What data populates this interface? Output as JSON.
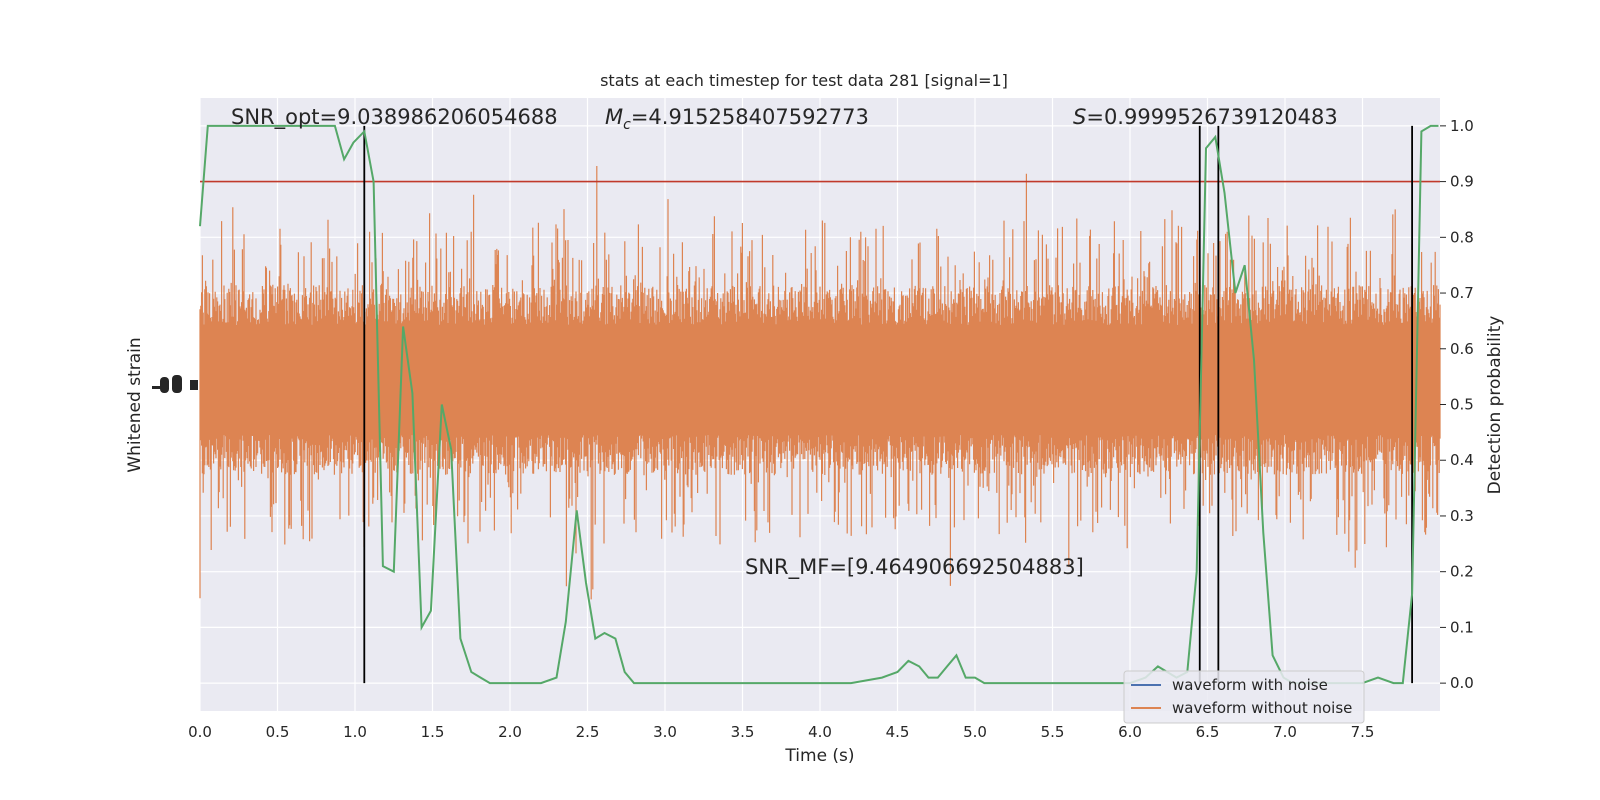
{
  "chart_data": {
    "type": "line",
    "title": "stats at each timestep for test data 281 [signal=1]",
    "xlabel": "Time (s)",
    "ylabel_left": "Whitened strain",
    "ylabel_right": "Detection probability",
    "xlim": [
      0,
      8
    ],
    "ylim_right": [
      -0.05,
      1.05
    ],
    "x_ticks": [
      "0.0",
      "0.5",
      "1.0",
      "1.5",
      "2.0",
      "2.5",
      "3.0",
      "3.5",
      "4.0",
      "4.5",
      "5.0",
      "5.5",
      "6.0",
      "6.5",
      "7.0",
      "7.5"
    ],
    "y_ticks_right": [
      "0.0",
      "0.1",
      "0.2",
      "0.3",
      "0.4",
      "0.5",
      "0.6",
      "0.7",
      "0.8",
      "0.9",
      "1.0"
    ],
    "grid": true,
    "threshold": 0.9,
    "threshold_color": "#c0392b",
    "annotations": {
      "snr_opt": "SNR_opt=9.038986206054688",
      "mc_symbol": "M",
      "mc_sub": "c",
      "mc_value": "=4.915258407592773",
      "s_symbol": "S",
      "s_value": "=0.9999526739120483",
      "snr_mf": "SNR_MF=[9.464906692504883]"
    },
    "vertical_lines_x": [
      1.06,
      6.45,
      6.57,
      7.82
    ],
    "detection_probability": {
      "x": [
        0.0,
        0.05,
        0.1,
        0.2,
        0.3,
        0.4,
        0.5,
        0.6,
        0.7,
        0.8,
        0.87,
        0.93,
        0.99,
        1.06,
        1.12,
        1.18,
        1.25,
        1.31,
        1.37,
        1.43,
        1.49,
        1.56,
        1.62,
        1.68,
        1.75,
        1.81,
        1.87,
        1.93,
        2.0,
        2.1,
        2.2,
        2.3,
        2.36,
        2.43,
        2.49,
        2.55,
        2.61,
        2.68,
        2.74,
        2.8,
        2.9,
        3.0,
        3.2,
        3.4,
        3.6,
        3.8,
        4.0,
        4.2,
        4.4,
        4.5,
        4.57,
        4.64,
        4.7,
        4.76,
        4.82,
        4.88,
        4.94,
        5.0,
        5.06,
        5.13,
        5.2,
        5.3,
        5.4,
        5.5,
        5.6,
        5.7,
        5.8,
        5.9,
        6.0,
        6.1,
        6.18,
        6.24,
        6.3,
        6.37,
        6.43,
        6.49,
        6.55,
        6.61,
        6.68,
        6.74,
        6.8,
        6.86,
        6.92,
        6.99,
        7.05,
        7.11,
        7.2,
        7.3,
        7.4,
        7.5,
        7.6,
        7.7,
        7.76,
        7.82,
        7.88,
        7.94,
        7.99
      ],
      "y": [
        0.82,
        1.0,
        1.0,
        1.0,
        1.0,
        1.0,
        1.0,
        1.0,
        1.0,
        1.0,
        1.0,
        0.94,
        0.97,
        0.99,
        0.9,
        0.21,
        0.2,
        0.64,
        0.52,
        0.1,
        0.13,
        0.5,
        0.42,
        0.08,
        0.02,
        0.01,
        0.0,
        0.0,
        0.0,
        0.0,
        0.0,
        0.01,
        0.11,
        0.31,
        0.18,
        0.08,
        0.09,
        0.08,
        0.02,
        0.0,
        0.0,
        0.0,
        0.0,
        0.0,
        0.0,
        0.0,
        0.0,
        0.0,
        0.01,
        0.02,
        0.04,
        0.03,
        0.01,
        0.01,
        0.03,
        0.05,
        0.01,
        0.01,
        0.0,
        0.0,
        0.0,
        0.0,
        0.0,
        0.0,
        0.0,
        0.0,
        0.0,
        0.0,
        0.0,
        0.01,
        0.03,
        0.02,
        0.01,
        0.02,
        0.2,
        0.96,
        0.98,
        0.88,
        0.7,
        0.75,
        0.58,
        0.27,
        0.05,
        0.01,
        0.0,
        0.0,
        0.0,
        0.0,
        0.0,
        0.0,
        0.01,
        0.0,
        0.0,
        0.16,
        0.99,
        1.0,
        1.0
      ],
      "color": "#55a868"
    },
    "strain_series_color": "#dd8452",
    "legend": [
      {
        "label": "waveform with noise",
        "color": "#4c72b0"
      },
      {
        "label": "waveform without noise",
        "color": "#dd8452"
      }
    ],
    "legend_position": "lower right"
  }
}
